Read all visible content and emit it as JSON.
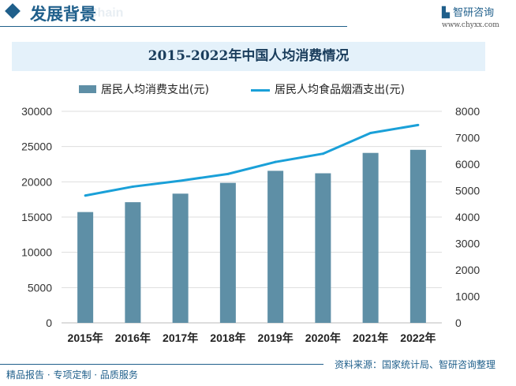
{
  "header": {
    "title": "发展背景",
    "subtitle": "Chain",
    "logo": "智研咨询",
    "url": "www.chyxx.com"
  },
  "footer": {
    "left": "精品报告 · 专项定制 · 品质服务",
    "source": "资料来源：国家统计局、智研咨询整理"
  },
  "chart_data": {
    "type": "bar+line",
    "title": "2015-2022年中国人均消费情况",
    "categories": [
      "2015年",
      "2016年",
      "2017年",
      "2018年",
      "2019年",
      "2020年",
      "2021年",
      "2022年"
    ],
    "series": [
      {
        "name": "居民人均消费支出(元)",
        "type": "bar",
        "axis": "left",
        "color": "#5e8fa6",
        "values": [
          15712,
          17111,
          18322,
          19853,
          21559,
          21210,
          24100,
          24538
        ]
      },
      {
        "name": "居民人均食品烟酒支出(元)",
        "type": "line",
        "axis": "right",
        "color": "#1aa0d8",
        "values": [
          4814,
          5151,
          5374,
          5631,
          6084,
          6397,
          7178,
          7481
        ]
      }
    ],
    "left_axis": {
      "ylim": [
        0,
        30000
      ],
      "ticks": [
        "0",
        "5000",
        "10000",
        "15000",
        "20000",
        "25000",
        "30000"
      ]
    },
    "right_axis": {
      "ylim": [
        0,
        8000
      ],
      "ticks": [
        "0",
        "1000",
        "2000",
        "3000",
        "4000",
        "5000",
        "6000",
        "7000",
        "8000"
      ]
    },
    "grid": true,
    "legend": "top"
  }
}
